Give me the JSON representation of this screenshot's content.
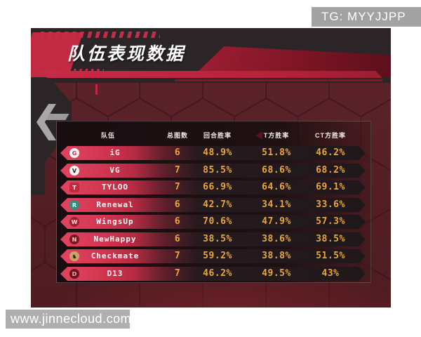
{
  "page": {
    "title": "队伍表现数据",
    "tg_badge": "TG: MYYJJPP",
    "watermark": "www.jinnecloud.com"
  },
  "colors": {
    "accent_red": "#c22a42",
    "row_red": "#d23550",
    "gold_number": "#eaa63c",
    "maroon_bg": "#552026",
    "banner_charcoal": "#2b2527",
    "badge_gray": "#9e9e9e"
  },
  "icons": {
    "left_chevron_decoration": "gray-chevron-icon"
  },
  "table": {
    "headers": [
      "队伍",
      "总图数",
      "回合胜率",
      "T方胜率",
      "CT方胜率"
    ],
    "rows": [
      {
        "team": "iG",
        "maps": "6",
        "round": "48.9%",
        "t": "51.8%",
        "ct": "46.2%",
        "logo_glyph": "G",
        "logo_style": "background:#f3f3f3;color:#c22f45"
      },
      {
        "team": "VG",
        "maps": "7",
        "round": "85.5%",
        "t": "68.6%",
        "ct": "68.2%",
        "logo_glyph": "V",
        "logo_style": "background:#f3f3f3;color:#23211f"
      },
      {
        "team": "TYLOO",
        "maps": "7",
        "round": "66.9%",
        "t": "64.6%",
        "ct": "69.1%",
        "logo_glyph": "T",
        "logo_style": "background:#c7273d;color:#ffffff;border-radius:3px"
      },
      {
        "team": "Renewal",
        "maps": "6",
        "round": "42.7%",
        "t": "34.1%",
        "ct": "33.6%",
        "logo_glyph": "R",
        "logo_style": "background:#2f8f7a;color:#d9f7ee"
      },
      {
        "team": "WingsUp",
        "maps": "6",
        "round": "70.6%",
        "t": "47.9%",
        "ct": "57.3%",
        "logo_glyph": "W",
        "logo_style": "background:#a31d2e;color:#ffd9de"
      },
      {
        "team": "NewHappy",
        "maps": "6",
        "round": "38.5%",
        "t": "38.6%",
        "ct": "38.5%",
        "logo_glyph": "N",
        "logo_style": "background:#7e1820;color:#f3cdd1"
      },
      {
        "team": "Checkmate",
        "maps": "7",
        "round": "59.2%",
        "t": "38.8%",
        "ct": "51.5%",
        "logo_glyph": "♞",
        "logo_style": "background:#c9a266;color:#33200f"
      },
      {
        "team": "D13",
        "maps": "7",
        "round": "46.2%",
        "t": "49.5%",
        "ct": "43%",
        "logo_glyph": "D",
        "logo_style": "background:#70121d;color:#e8aeb6"
      }
    ]
  },
  "chart_data": {
    "type": "table",
    "title": "队伍表现数据",
    "columns": [
      "队伍",
      "总图数",
      "回合胜率",
      "T方胜率",
      "CT方胜率"
    ],
    "rows": [
      [
        "iG",
        6,
        "48.9%",
        "51.8%",
        "46.2%"
      ],
      [
        "VG",
        7,
        "85.5%",
        "68.6%",
        "68.2%"
      ],
      [
        "TYLOO",
        7,
        "66.9%",
        "64.6%",
        "69.1%"
      ],
      [
        "Renewal",
        6,
        "42.7%",
        "34.1%",
        "33.6%"
      ],
      [
        "WingsUp",
        6,
        "70.6%",
        "47.9%",
        "57.3%"
      ],
      [
        "NewHappy",
        6,
        "38.5%",
        "38.6%",
        "38.5%"
      ],
      [
        "Checkmate",
        7,
        "59.2%",
        "38.8%",
        "51.5%"
      ],
      [
        "D13",
        7,
        "46.2%",
        "49.5%",
        "43%"
      ]
    ]
  }
}
